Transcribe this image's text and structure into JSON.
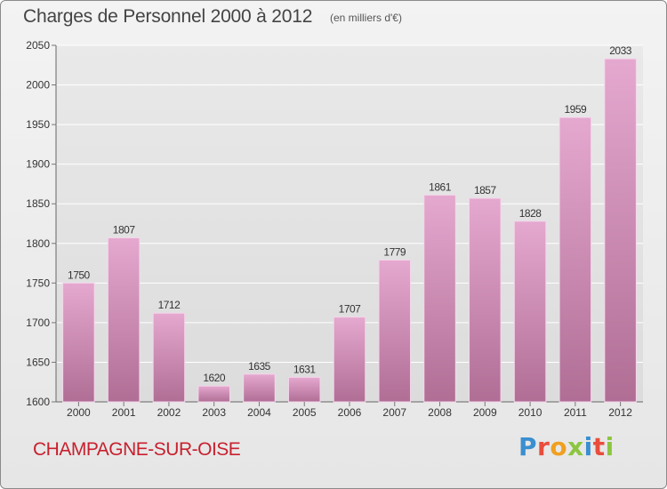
{
  "header": {
    "title": "Charges de Personnel 2000 à 2012",
    "subtitle": "(en milliers d'€)"
  },
  "footer": {
    "commune": "CHAMPAGNE-SUR-OISE",
    "logo": "Proxiti"
  },
  "colors": {
    "bar_top": "#e5a8cf",
    "bar_bottom": "#b06e95",
    "commune_text": "#c8202e"
  },
  "chart_data": {
    "type": "bar",
    "title": "Charges de Personnel 2000 à 2012",
    "subtitle": "(en milliers d'€)",
    "xlabel": "",
    "ylabel": "",
    "categories": [
      "2000",
      "2001",
      "2002",
      "2003",
      "2004",
      "2005",
      "2006",
      "2007",
      "2008",
      "2009",
      "2010",
      "2011",
      "2012"
    ],
    "values": [
      1750,
      1807,
      1712,
      1620,
      1635,
      1631,
      1707,
      1779,
      1861,
      1857,
      1828,
      1959,
      2033
    ],
    "ylim": [
      1600,
      2050
    ],
    "yticks": [
      1600,
      1650,
      1700,
      1750,
      1800,
      1850,
      1900,
      1950,
      2000,
      2050
    ],
    "grid": true,
    "legend": "none"
  }
}
